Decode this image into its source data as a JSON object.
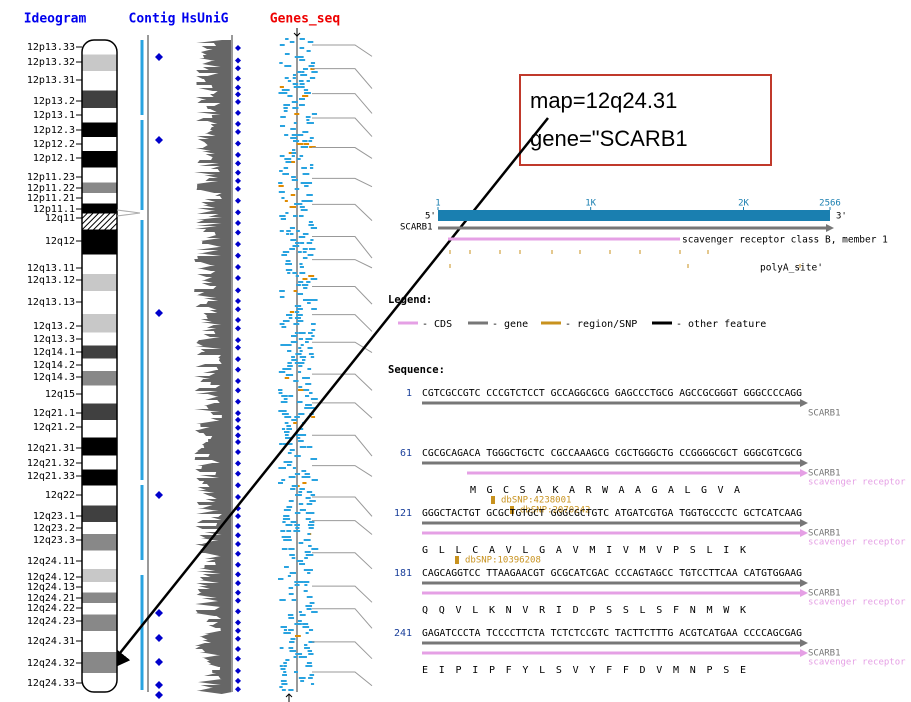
{
  "header": {
    "columns": [
      "Ideogram",
      "Contig",
      "HsUniG",
      "Genes_seq"
    ]
  },
  "ideogram": {
    "bands": [
      "12p13.33",
      "12p13.32",
      "12p13.31",
      "12p13.2",
      "12p13.1",
      "12p12.3",
      "12p12.2",
      "12p12.1",
      "12p11.23",
      "12p11.22",
      "12p11.21",
      "12p11.1",
      "12q11",
      "12q12",
      "12q13.11",
      "12q13.12",
      "12q13.13",
      "12q13.2",
      "12q13.3",
      "12q14.1",
      "12q14.2",
      "12q14.3",
      "12q15",
      "12q21.1",
      "12q21.2",
      "12q21.31",
      "12q21.32",
      "12q21.33",
      "12q22",
      "12q23.1",
      "12q23.2",
      "12q23.3",
      "12q24.11",
      "12q24.12",
      "12q24.13",
      "12q24.21",
      "12q24.22",
      "12q24.23",
      "12q24.31",
      "12q24.32",
      "12q24.33"
    ]
  },
  "callout": {
    "lines": [
      "map=12q24.31",
      "gene=\"SCARB1"
    ]
  },
  "gene_map": {
    "ticks": [
      "1",
      "1K",
      "2K",
      "2566"
    ],
    "five_prime": "5'",
    "three_prime": "3'",
    "gene": "SCARB1",
    "product": "scavenger receptor class B, member 1",
    "feature": "polyA_site'"
  },
  "legend": {
    "title": "Legend:",
    "items": [
      "- CDS",
      "- gene",
      "- region/SNP",
      "- other feature"
    ]
  },
  "sequence": {
    "title": "Sequence:",
    "rows": [
      {
        "number": "1",
        "seq": "CGTCGCCGTC CCCGTCTCCT GCCAGGCGCG GAGCCCTGCG AGCCGCGGGT GGGCCCCAGG",
        "gene": "SCARB1"
      },
      {
        "number": "61",
        "seq": "CGCGCAGACA TGGGCTGCTC CGCCAAAGCG CGCTGGGCTG CCGGGGCGCT GGGCGTCGCG",
        "gene": "SCARB1",
        "product": "scavenger receptor",
        "aa": "M G C S A K A R W A A G A L G V A",
        "snps": [
          "dbSNP:4238001",
          "dbSNP:2070242"
        ]
      },
      {
        "number": "121",
        "seq": "GGGCTACTGT GCGCTGTGCT GGGCGCTGTC ATGATCGTGA TGGTGCCCTC GCTCATCAAG",
        "gene": "SCARB1",
        "product": "scavenger receptor",
        "aa": "G L L C A V L G A V M I V M V P S L I K",
        "snps": [
          "dbSNP:10396208"
        ]
      },
      {
        "number": "181",
        "seq": "CAGCAGGTCC TTAAGAACGT GCGCATCGAC CCCAGTAGCC TGTCCTTCAA CATGTGGAAG",
        "gene": "SCARB1",
        "product": "scavenger receptor",
        "aa": "Q Q V L K N V R I D P S S L S F N M W K"
      },
      {
        "number": "241",
        "seq": "GAGATCCCTA TCCCCTTCTA TCTCTCCGTC TACTTCTTTG ACGTCATGAA CCCCAGCGAG",
        "gene": "SCARB1",
        "product": "scavenger receptor",
        "aa": "E I P I P F Y L S V Y F F D V M N P S E"
      }
    ]
  }
}
